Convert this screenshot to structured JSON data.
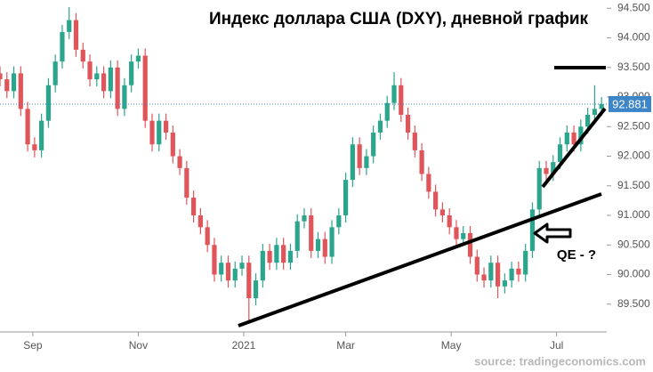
{
  "chart_data": {
    "type": "candlestick",
    "title": "Индекс доллара США (DXY), дневной график",
    "annotation": "QE - ?",
    "source": "source: tradingeconomics.com",
    "last_value": 92.881,
    "up_color": "#2ca58d",
    "down_color": "#e0555a",
    "x": [
      0,
      4,
      8,
      12,
      16,
      20,
      24,
      28,
      32,
      36,
      40,
      44,
      48,
      52,
      56,
      60,
      64,
      68,
      72,
      76,
      80,
      84,
      88,
      92,
      96,
      100,
      104,
      108,
      112,
      116,
      120,
      124,
      128,
      132,
      136,
      140,
      144,
      148,
      152,
      156,
      160,
      164,
      168,
      172,
      176,
      180,
      184,
      188,
      192,
      196,
      200,
      204,
      208,
      212,
      216,
      220,
      224,
      228,
      232,
      236,
      240,
      244,
      248,
      252,
      256,
      260,
      264,
      268,
      272,
      276,
      280,
      284,
      288,
      292,
      296,
      300,
      304,
      308,
      312,
      316,
      320,
      324,
      328,
      332,
      336,
      340,
      344,
      348
    ],
    "open": [
      93.4,
      93.3,
      93.1,
      93.4,
      92.8,
      92.2,
      92.1,
      92.6,
      93.2,
      93.6,
      94.1,
      94.3,
      93.8,
      93.6,
      93.3,
      93.4,
      93.1,
      93.5,
      92.8,
      93.2,
      93.6,
      93.7,
      92.6,
      92.2,
      92.6,
      92.4,
      92.0,
      91.8,
      91.3,
      91.0,
      90.8,
      90.5,
      90.0,
      90.2,
      89.9,
      90.1,
      90.2,
      89.6,
      89.9,
      90.4,
      90.2,
      90.5,
      90.2,
      90.4,
      90.9,
      91.0,
      90.4,
      90.6,
      90.3,
      90.8,
      91.0,
      91.6,
      92.2,
      91.8,
      92.0,
      92.4,
      92.6,
      92.9,
      93.2,
      92.7,
      92.4,
      92.1,
      91.7,
      91.4,
      91.1,
      91.0,
      90.8,
      90.6,
      90.7,
      90.3,
      90.0,
      89.9,
      90.2,
      89.8,
      89.9,
      90.1,
      90.0,
      90.4,
      91.1,
      91.8,
      91.7,
      91.9,
      92.2,
      92.4,
      92.2,
      92.5,
      92.7,
      92.8
    ],
    "high": [
      93.52,
      93.42,
      93.52,
      93.52,
      92.92,
      92.32,
      92.72,
      93.32,
      93.72,
      94.22,
      94.52,
      94.42,
      93.92,
      93.72,
      93.52,
      93.52,
      93.62,
      93.62,
      93.32,
      93.72,
      93.82,
      93.82,
      92.72,
      92.72,
      92.72,
      92.52,
      92.12,
      91.92,
      91.42,
      91.12,
      90.92,
      90.62,
      90.32,
      90.32,
      90.22,
      90.32,
      90.32,
      90.02,
      90.52,
      90.52,
      90.62,
      90.62,
      90.52,
      91.02,
      91.12,
      91.12,
      90.72,
      90.72,
      90.92,
      91.12,
      91.72,
      92.32,
      92.32,
      92.12,
      92.52,
      92.72,
      93.02,
      93.42,
      93.32,
      92.82,
      92.52,
      92.22,
      91.82,
      91.52,
      91.22,
      91.12,
      90.92,
      90.82,
      90.82,
      90.42,
      90.12,
      90.32,
      90.32,
      90.02,
      90.22,
      90.22,
      90.52,
      91.22,
      91.92,
      91.92,
      92.02,
      92.32,
      92.52,
      92.52,
      92.62,
      92.82,
      93.2,
      93.0
    ],
    "low": [
      93.18,
      92.98,
      92.98,
      92.68,
      92.08,
      91.98,
      91.98,
      92.48,
      93.08,
      93.48,
      93.98,
      93.68,
      93.48,
      93.18,
      93.18,
      92.98,
      92.98,
      92.68,
      92.68,
      93.08,
      93.48,
      92.48,
      92.08,
      92.08,
      92.28,
      91.88,
      91.68,
      91.18,
      90.88,
      90.68,
      90.38,
      89.88,
      89.88,
      89.78,
      89.78,
      89.98,
      89.2,
      89.48,
      89.78,
      90.08,
      90.08,
      90.08,
      90.08,
      90.28,
      90.78,
      90.28,
      90.28,
      90.18,
      90.18,
      90.68,
      90.88,
      91.48,
      91.68,
      91.68,
      91.88,
      92.28,
      92.48,
      92.78,
      92.58,
      92.28,
      91.98,
      91.58,
      91.28,
      90.98,
      90.88,
      90.68,
      90.48,
      90.48,
      90.18,
      89.88,
      89.78,
      89.78,
      89.6,
      89.68,
      89.78,
      89.88,
      89.88,
      90.28,
      90.98,
      91.58,
      91.58,
      91.78,
      92.08,
      92.08,
      92.08,
      92.38,
      92.58,
      92.68
    ],
    "close": [
      93.3,
      93.1,
      93.4,
      92.8,
      92.2,
      92.1,
      92.6,
      93.2,
      93.6,
      94.1,
      94.3,
      93.8,
      93.6,
      93.3,
      93.4,
      93.1,
      93.5,
      92.8,
      93.2,
      93.6,
      93.7,
      92.6,
      92.2,
      92.6,
      92.4,
      92.0,
      91.8,
      91.3,
      91.0,
      90.8,
      90.5,
      90.0,
      90.2,
      89.9,
      90.1,
      90.2,
      89.6,
      89.9,
      90.4,
      90.2,
      90.5,
      90.2,
      90.4,
      90.9,
      91.0,
      90.4,
      90.6,
      90.3,
      90.8,
      91.0,
      91.6,
      92.2,
      91.8,
      92.0,
      92.4,
      92.6,
      92.9,
      93.2,
      92.7,
      92.4,
      92.1,
      91.7,
      91.4,
      91.1,
      91.0,
      90.8,
      90.6,
      90.7,
      90.3,
      90.0,
      89.9,
      90.2,
      89.8,
      89.9,
      90.1,
      90.0,
      90.4,
      91.1,
      91.8,
      91.7,
      91.9,
      92.2,
      92.4,
      92.2,
      92.5,
      92.7,
      92.8,
      92.88
    ],
    "xlim": [
      0,
      351
    ],
    "xticks": [
      {
        "value": 19,
        "label": "Sep"
      },
      {
        "value": 80,
        "label": "Nov"
      },
      {
        "value": 141,
        "label": "2021"
      },
      {
        "value": 200,
        "label": "Mar"
      },
      {
        "value": 261,
        "label": "May"
      },
      {
        "value": 322,
        "label": "Jul"
      }
    ],
    "ylim": [
      89.03,
      94.64
    ],
    "yticks": [
      {
        "value": 89.5,
        "label": "89.500"
      },
      {
        "value": 90,
        "label": "90.000"
      },
      {
        "value": 90.5,
        "label": "90.500"
      },
      {
        "value": 91,
        "label": "91.000"
      },
      {
        "value": 91.5,
        "label": "91.500"
      },
      {
        "value": 92,
        "label": "92.000"
      },
      {
        "value": 92.5,
        "label": "92.500"
      },
      {
        "value": 93,
        "label": "93.000"
      },
      {
        "value": 93.5,
        "label": "93.500"
      },
      {
        "value": 94,
        "label": "94.000"
      },
      {
        "value": 94.5,
        "label": "94.500"
      }
    ]
  }
}
